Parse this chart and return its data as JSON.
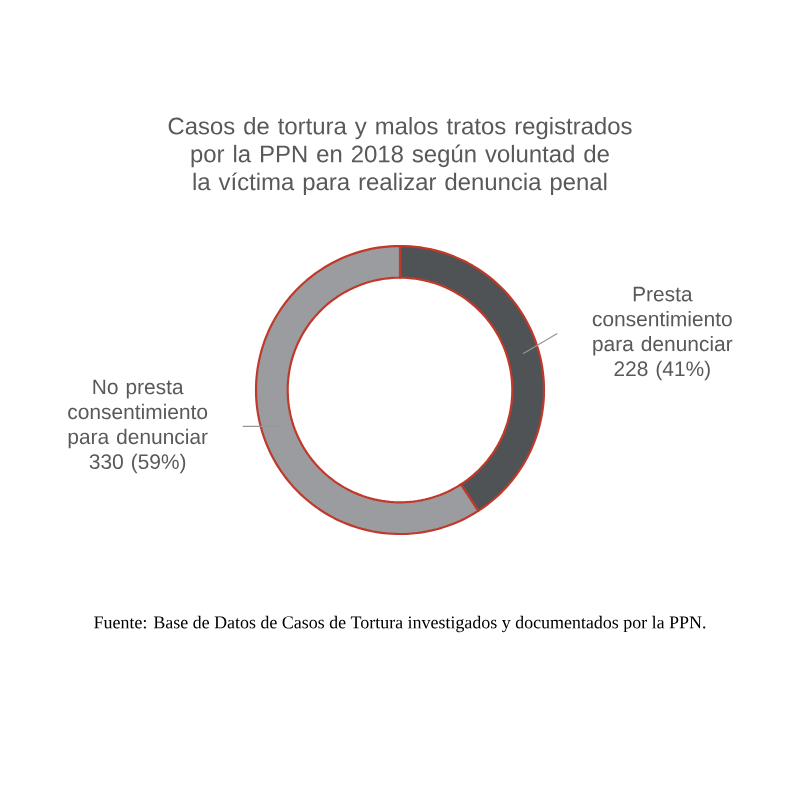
{
  "chart_data": {
    "type": "donut",
    "title": "Casos de tortura y malos tratos registrados por la PPN en 2018 según voluntad de la víctima para realizar denuncia penal",
    "categories": [
      "Presta consentimiento para denunciar",
      "No presta consentimiento para denunciar"
    ],
    "values": [
      228,
      330
    ],
    "value_labels": [
      "228 (41%)",
      "330 (59%)"
    ],
    "colors": [
      "#505356",
      "#9a9c9f"
    ],
    "annotations": [
      "Fuente: Base de Datos de Casos de Tortura investigados y documentados por la PPN."
    ]
  }
}
